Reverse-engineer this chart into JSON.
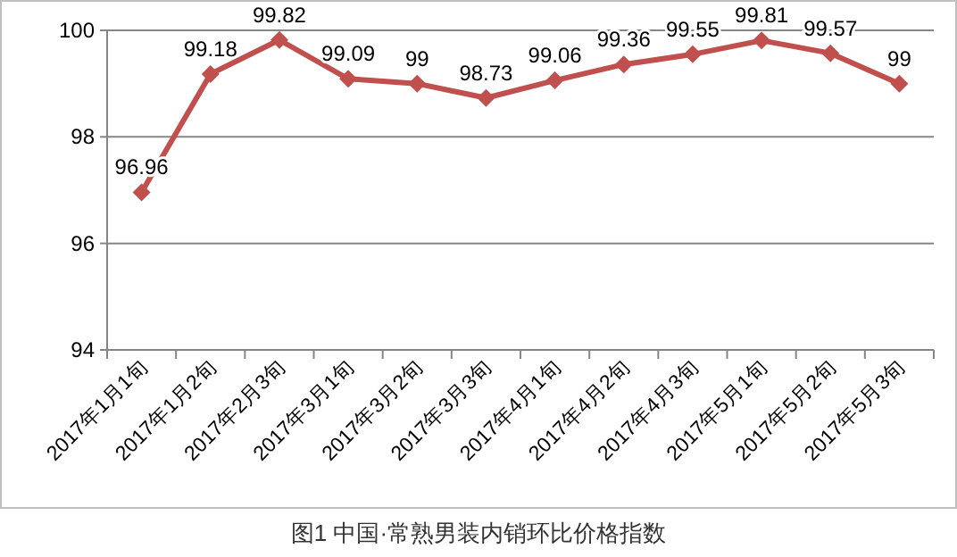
{
  "chart_data": {
    "type": "line",
    "title": "图1 中国·常熟男装内销环比价格指数",
    "categories": [
      "2017年1月1旬",
      "2017年1月2旬",
      "2017年2月3旬",
      "2017年3月1旬",
      "2017年3月2旬",
      "2017年3月3旬",
      "2017年4月1旬",
      "2017年4月2旬",
      "2017年4月3旬",
      "2017年5月1旬",
      "2017年5月2旬",
      "2017年5月3旬"
    ],
    "series": [
      {
        "color": "#c0504d",
        "values": [
          96.96,
          99.18,
          99.82,
          99.09,
          99,
          98.73,
          99.06,
          99.36,
          99.55,
          99.81,
          99.57,
          99
        ]
      }
    ],
    "ylim": [
      94,
      100
    ],
    "yticks": [
      94,
      96,
      98,
      100
    ],
    "grid": "y",
    "marker": "diamond",
    "line_style": "solid",
    "data_labels": true
  }
}
